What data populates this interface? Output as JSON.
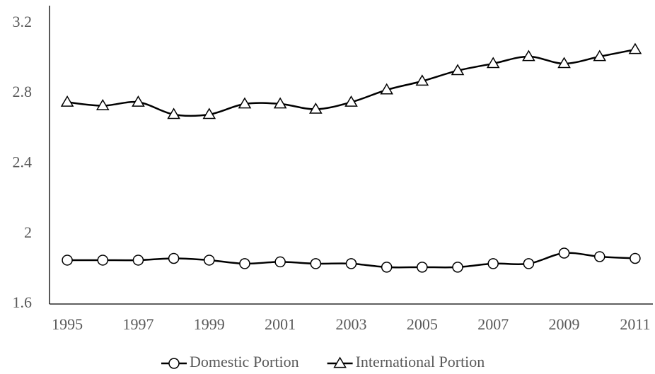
{
  "chart_data": {
    "type": "line",
    "x": [
      1995,
      1996,
      1997,
      1998,
      1999,
      2000,
      2001,
      2002,
      2003,
      2004,
      2005,
      2006,
      2007,
      2008,
      2009,
      2010,
      2011
    ],
    "series": [
      {
        "name": "Domestic Portion",
        "color": "#000000",
        "marker": "circle",
        "values": [
          1.85,
          1.85,
          1.85,
          1.86,
          1.85,
          1.83,
          1.84,
          1.83,
          1.83,
          1.81,
          1.81,
          1.81,
          1.83,
          1.83,
          1.89,
          1.87,
          1.86
        ]
      },
      {
        "name": "International Portion",
        "color": "#000000",
        "marker": "triangle",
        "values": [
          2.75,
          2.73,
          2.75,
          2.68,
          2.68,
          2.74,
          2.74,
          2.71,
          2.75,
          2.82,
          2.87,
          2.93,
          2.97,
          3.01,
          2.97,
          3.01,
          3.05
        ]
      }
    ],
    "xlim": [
      1994.5,
      2011.5
    ],
    "xticks": [
      1995,
      1997,
      1999,
      2001,
      2003,
      2005,
      2007,
      2009,
      2011
    ],
    "ylim": [
      1.6,
      3.3
    ],
    "yticks": [
      1.6,
      2,
      2.4,
      2.8,
      3.2
    ],
    "grid": false,
    "legend": "bottom"
  }
}
